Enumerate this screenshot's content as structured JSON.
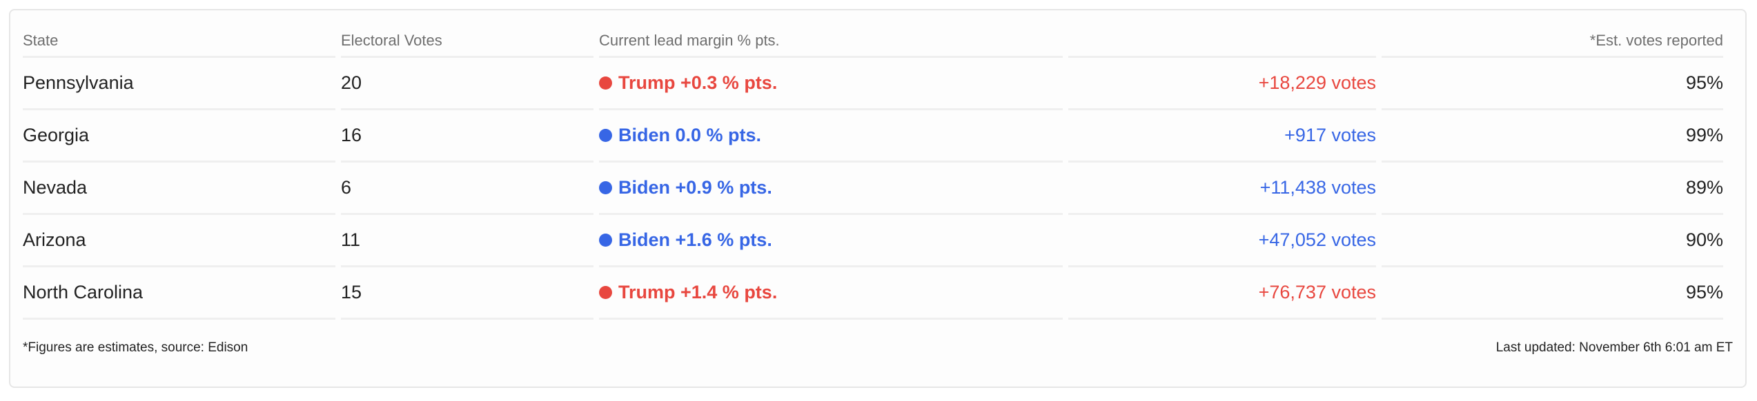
{
  "colors": {
    "trump": "#e8473f",
    "biden": "#3766e5"
  },
  "headers": [
    "State",
    "Electoral Votes",
    "Current lead margin % pts.",
    "",
    "*Est. votes reported"
  ],
  "rows": [
    {
      "state": "Pennsylvania",
      "ev": "20",
      "party": "trump",
      "lead": "Trump +0.3 % pts.",
      "votes": "+18,229 votes",
      "reported": "95%"
    },
    {
      "state": "Georgia",
      "ev": "16",
      "party": "biden",
      "lead": "Biden 0.0 % pts.",
      "votes": "+917 votes",
      "reported": "99%"
    },
    {
      "state": "Nevada",
      "ev": "6",
      "party": "biden",
      "lead": "Biden +0.9 % pts.",
      "votes": "+11,438 votes",
      "reported": "89%"
    },
    {
      "state": "Arizona",
      "ev": "11",
      "party": "biden",
      "lead": "Biden +1.6 % pts.",
      "votes": "+47,052 votes",
      "reported": "90%"
    },
    {
      "state": "North Carolina",
      "ev": "15",
      "party": "trump",
      "lead": "Trump +1.4 % pts.",
      "votes": "+76,737 votes",
      "reported": "95%"
    }
  ],
  "footer": {
    "source": "*Figures are estimates, source: Edison",
    "updated": "Last updated: November 6th 6:01 am ET"
  }
}
